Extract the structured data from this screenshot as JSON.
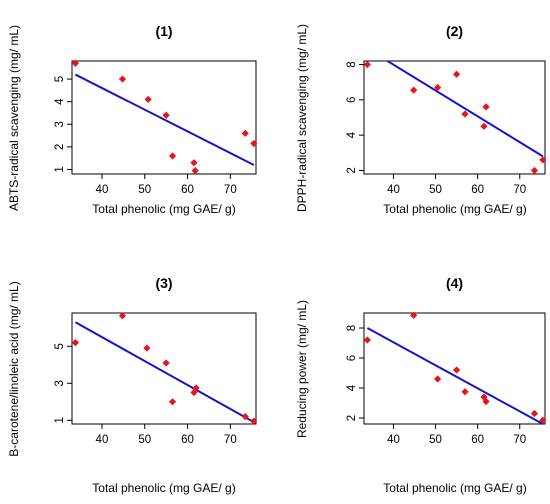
{
  "colors": {
    "points": "#e8141b",
    "fit_line": "#1414cc",
    "axes": "#000000"
  },
  "chart_data": [
    {
      "type": "scatter",
      "title": "(1)",
      "xlabel": "Total phenolic (mg GAE/ g)",
      "ylabel": "ABTS-radical scavenging (mg/ mL)",
      "xlim": [
        33.0,
        76.0
      ],
      "ylim": [
        0.8,
        5.8
      ],
      "xticks": [
        40,
        50,
        60,
        70
      ],
      "yticks": [
        1,
        2,
        3,
        4,
        5
      ],
      "points": [
        {
          "x": 33.8,
          "y": 5.7
        },
        {
          "x": 44.8,
          "y": 5.0
        },
        {
          "x": 50.8,
          "y": 4.1
        },
        {
          "x": 55.0,
          "y": 3.4
        },
        {
          "x": 56.5,
          "y": 1.6
        },
        {
          "x": 61.5,
          "y": 1.3
        },
        {
          "x": 61.8,
          "y": 0.95
        },
        {
          "x": 73.5,
          "y": 2.6
        },
        {
          "x": 75.5,
          "y": 2.15
        }
      ],
      "fit_line": [
        {
          "x": 33.8,
          "y": 5.2
        },
        {
          "x": 75.5,
          "y": 1.2
        }
      ]
    },
    {
      "type": "scatter",
      "title": "(2)",
      "xlabel": "Total phenolic (mg GAE/ g)",
      "ylabel": "DPPH-radical scavenging (mg/ mL)",
      "xlim": [
        33.0,
        76.0
      ],
      "ylim": [
        1.8,
        8.2
      ],
      "xticks": [
        40,
        50,
        60,
        70
      ],
      "yticks": [
        2,
        4,
        6,
        8
      ],
      "points": [
        {
          "x": 33.8,
          "y": 8.0
        },
        {
          "x": 44.8,
          "y": 6.55
        },
        {
          "x": 50.5,
          "y": 6.7
        },
        {
          "x": 55.0,
          "y": 7.45
        },
        {
          "x": 57.0,
          "y": 5.2
        },
        {
          "x": 61.5,
          "y": 4.5
        },
        {
          "x": 62.0,
          "y": 5.6
        },
        {
          "x": 73.5,
          "y": 2.0
        },
        {
          "x": 75.5,
          "y": 2.6
        }
      ],
      "fit_line": [
        {
          "x": 33.8,
          "y": 8.9
        },
        {
          "x": 75.5,
          "y": 2.8
        }
      ]
    },
    {
      "type": "scatter",
      "title": "(3)",
      "xlabel": "Total phenolic (mg GAE/ g)",
      "ylabel": "B-carotene/linoleic acid (mg/ mL)",
      "xlim": [
        33.0,
        76.0
      ],
      "ylim": [
        0.8,
        6.8
      ],
      "xticks": [
        40,
        50,
        60,
        70
      ],
      "yticks": [
        1,
        3,
        5
      ],
      "points": [
        {
          "x": 33.8,
          "y": 5.2
        },
        {
          "x": 44.8,
          "y": 6.65
        },
        {
          "x": 50.5,
          "y": 4.9
        },
        {
          "x": 55.0,
          "y": 4.1
        },
        {
          "x": 56.5,
          "y": 2.0
        },
        {
          "x": 61.5,
          "y": 2.5
        },
        {
          "x": 62.0,
          "y": 2.75
        },
        {
          "x": 73.5,
          "y": 1.2
        },
        {
          "x": 75.5,
          "y": 0.95
        }
      ],
      "fit_line": [
        {
          "x": 33.8,
          "y": 6.3
        },
        {
          "x": 75.5,
          "y": 0.9
        }
      ]
    },
    {
      "type": "scatter",
      "title": "(4)",
      "xlabel": "Total phenolic (mg GAE/ g)",
      "ylabel": "Reducing power (mg/ mL)",
      "xlim": [
        33.0,
        76.0
      ],
      "ylim": [
        1.6,
        9.0
      ],
      "xticks": [
        40,
        50,
        60,
        70
      ],
      "yticks": [
        2,
        4,
        6,
        8
      ],
      "points": [
        {
          "x": 33.8,
          "y": 7.2
        },
        {
          "x": 44.8,
          "y": 8.85
        },
        {
          "x": 50.5,
          "y": 4.6
        },
        {
          "x": 55.0,
          "y": 5.2
        },
        {
          "x": 57.0,
          "y": 3.75
        },
        {
          "x": 61.5,
          "y": 3.4
        },
        {
          "x": 62.0,
          "y": 3.1
        },
        {
          "x": 73.5,
          "y": 2.3
        },
        {
          "x": 75.5,
          "y": 1.85
        }
      ],
      "fit_line": [
        {
          "x": 33.8,
          "y": 8.0
        },
        {
          "x": 75.5,
          "y": 1.6
        }
      ]
    }
  ]
}
